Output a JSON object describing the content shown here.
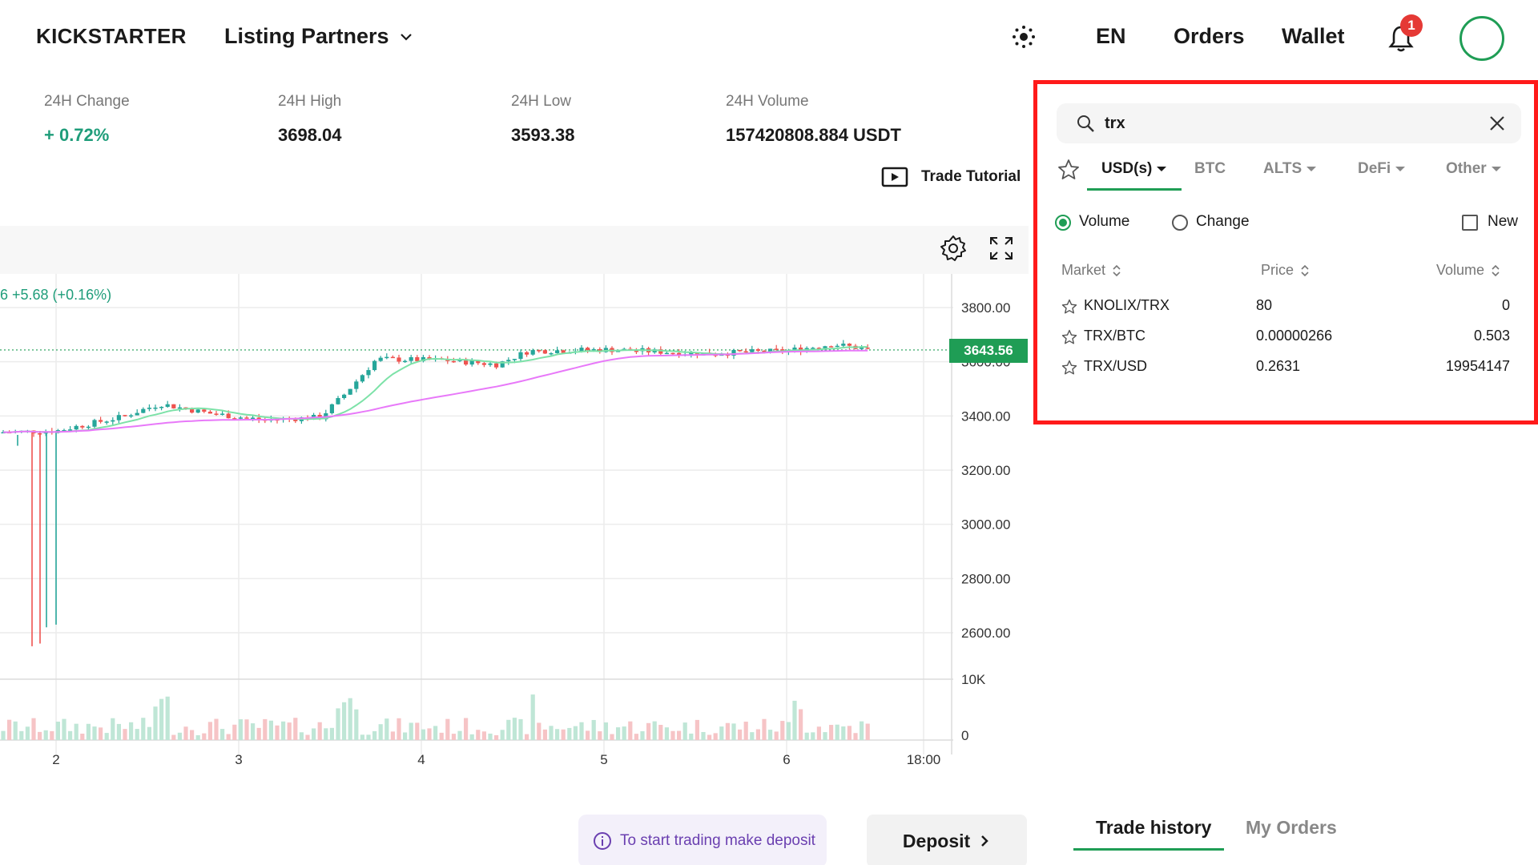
{
  "header": {
    "brand": "KICKSTARTER",
    "partners_label": "Listing Partners",
    "lang": "EN",
    "orders": "Orders",
    "wallet": "Wallet",
    "notification_count": "1"
  },
  "stats": {
    "change": {
      "label": "24H Change",
      "value": "+ 0.72%"
    },
    "high": {
      "label": "24H High",
      "value": "3698.04"
    },
    "low": {
      "label": "24H Low",
      "value": "3593.38"
    },
    "volume": {
      "label": "24H Volume",
      "value": "157420808.884 USDT"
    }
  },
  "tutorial_label": "Trade Tutorial",
  "chart_data": {
    "type": "candlestick",
    "change_readout": "6  +5.68 (+0.16%)",
    "last_price": "3643.56",
    "price_ticks": [
      "3800.00",
      "3600.00",
      "3400.00",
      "3200.00",
      "3000.00",
      "2800.00",
      "2600.00"
    ],
    "volume_ticks": [
      "10K",
      "0"
    ],
    "x_ticks": [
      "2",
      "3",
      "4",
      "5",
      "6",
      "18:00"
    ],
    "colors": {
      "up": "#26a69a",
      "down": "#ef5350",
      "ma_fast": "#7de2a8",
      "ma_slow": "#e879f9"
    }
  },
  "deposit_info": "To start trading make deposit",
  "deposit_button": "Deposit",
  "bottom_tabs": {
    "trade_history": "Trade history",
    "my_orders": "My Orders"
  },
  "market": {
    "search_value": "trx",
    "tabs": [
      {
        "label": "USD(s)",
        "active": true,
        "dropdown": true
      },
      {
        "label": "BTC",
        "active": false,
        "dropdown": false
      },
      {
        "label": "ALTS",
        "active": false,
        "dropdown": true
      },
      {
        "label": "DeFi",
        "active": false,
        "dropdown": true
      },
      {
        "label": "Other",
        "active": false,
        "dropdown": true
      }
    ],
    "sort_volume": "Volume",
    "sort_change": "Change",
    "new_label": "New",
    "columns": {
      "market": "Market",
      "price": "Price",
      "volume": "Volume"
    },
    "rows": [
      {
        "market": "KNOLIX/TRX",
        "price": "80",
        "volume": "0"
      },
      {
        "market": "TRX/BTC",
        "price": "0.00000266",
        "volume": "0.503"
      },
      {
        "market": "TRX/USD",
        "price": "0.2631",
        "volume": "19954147"
      }
    ],
    "accent": "#1f9d55"
  }
}
